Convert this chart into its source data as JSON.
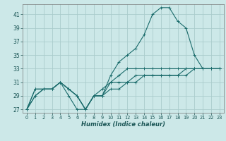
{
  "title": "",
  "xlabel": "Humidex (Indice chaleur)",
  "bg_color": "#cce8e8",
  "grid_color": "#aacccc",
  "line_color": "#1a6b6b",
  "ylim": [
    26.5,
    42.5
  ],
  "xlim": [
    -0.5,
    23.5
  ],
  "yticks": [
    27,
    29,
    31,
    33,
    35,
    37,
    39,
    41
  ],
  "xticks": [
    0,
    1,
    2,
    3,
    4,
    5,
    6,
    7,
    8,
    9,
    10,
    11,
    12,
    13,
    14,
    15,
    16,
    17,
    18,
    19,
    20,
    21,
    22,
    23
  ],
  "lines": [
    [
      27,
      29,
      30,
      30,
      31,
      30,
      29,
      27,
      29,
      29,
      32,
      34,
      35,
      36,
      38,
      41,
      42,
      42,
      40,
      39,
      35,
      33,
      33,
      33
    ],
    [
      27,
      30,
      30,
      30,
      31,
      30,
      29,
      27,
      29,
      30,
      31,
      31,
      31,
      32,
      32,
      32,
      32,
      32,
      32,
      33,
      33,
      33,
      33,
      33
    ],
    [
      27,
      29,
      30,
      30,
      31,
      30,
      29,
      27,
      29,
      29,
      30,
      30,
      31,
      31,
      32,
      32,
      32,
      32,
      32,
      32,
      33,
      33,
      33,
      33
    ],
    [
      27,
      30,
      30,
      30,
      31,
      29,
      27,
      27,
      29,
      29,
      31,
      32,
      33,
      33,
      33,
      33,
      33,
      33,
      33,
      33,
      33,
      33,
      33,
      33
    ]
  ]
}
